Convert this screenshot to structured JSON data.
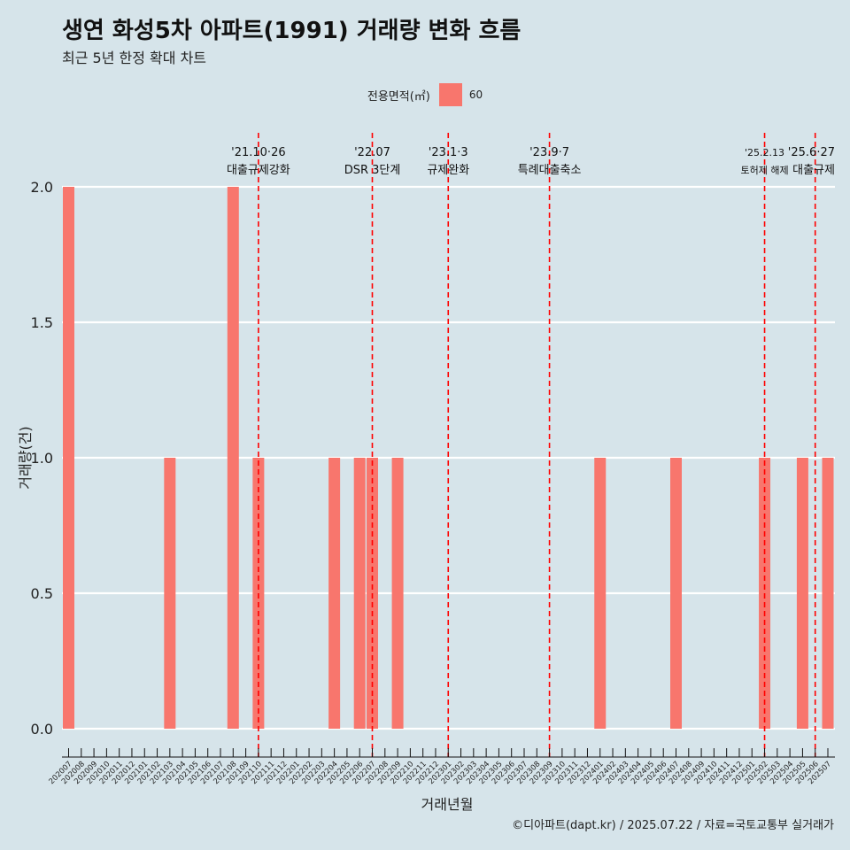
{
  "title": "생연 화성5차 아파트(1991) 거래량 변화 흐름",
  "subtitle": "최근 5년 한정 확대 차트",
  "caption": "©디아파트(dapt.kr) / 2025.07.22 / 자료=국토교통부 실거래가",
  "legend": {
    "title": "전용면적(㎡)",
    "items": [
      {
        "label": "60",
        "color": "#f8766d"
      }
    ]
  },
  "chart_data": {
    "type": "bar",
    "xlabel": "거래년월",
    "ylabel": "거래량(건)",
    "ylim": [
      0,
      2
    ],
    "yticks": [
      "0.0",
      "0.5",
      "1.0",
      "1.5",
      "2.0"
    ],
    "categories": [
      "202007",
      "202008",
      "202009",
      "202010",
      "202011",
      "202012",
      "202101",
      "202102",
      "202103",
      "202104",
      "202105",
      "202106",
      "202107",
      "202108",
      "202109",
      "202110",
      "202111",
      "202112",
      "202201",
      "202202",
      "202203",
      "202204",
      "202205",
      "202206",
      "202207",
      "202208",
      "202209",
      "202210",
      "202211",
      "202212",
      "202301",
      "202302",
      "202303",
      "202304",
      "202305",
      "202306",
      "202307",
      "202308",
      "202309",
      "202310",
      "202311",
      "202312",
      "202401",
      "202402",
      "202403",
      "202404",
      "202405",
      "202406",
      "202407",
      "202408",
      "202409",
      "202410",
      "202411",
      "202412",
      "202501",
      "202502",
      "202503",
      "202504",
      "202505",
      "202506",
      "202507"
    ],
    "series": [
      {
        "name": "60",
        "values": [
          2,
          0,
          0,
          0,
          0,
          0,
          0,
          0,
          1,
          0,
          0,
          0,
          0,
          2,
          0,
          1,
          0,
          0,
          0,
          0,
          0,
          1,
          0,
          1,
          1,
          0,
          1,
          0,
          0,
          0,
          0,
          0,
          0,
          0,
          0,
          0,
          0,
          0,
          0,
          0,
          0,
          0,
          1,
          0,
          0,
          0,
          0,
          0,
          1,
          0,
          0,
          0,
          0,
          0,
          0,
          1,
          0,
          0,
          1,
          0,
          1
        ]
      }
    ],
    "events": [
      {
        "category": "202110",
        "date": "'21.10·26",
        "label": "대출규제강화"
      },
      {
        "category": "202207",
        "date": "'22.07",
        "label": "DSR 3단계"
      },
      {
        "category": "202301",
        "date": "'23.1·3",
        "label": "규제완화"
      },
      {
        "category": "202309",
        "date": "'23.9·7",
        "label": "특례대출축소"
      },
      {
        "category": "202502",
        "date": "'25.2.13",
        "label": "토허제 해제"
      },
      {
        "category": "202506",
        "date": "'25.6·27",
        "label": "대출규제"
      }
    ],
    "bar_color": "#f8766d",
    "event_line_color": "#ff0000",
    "grid": true
  }
}
